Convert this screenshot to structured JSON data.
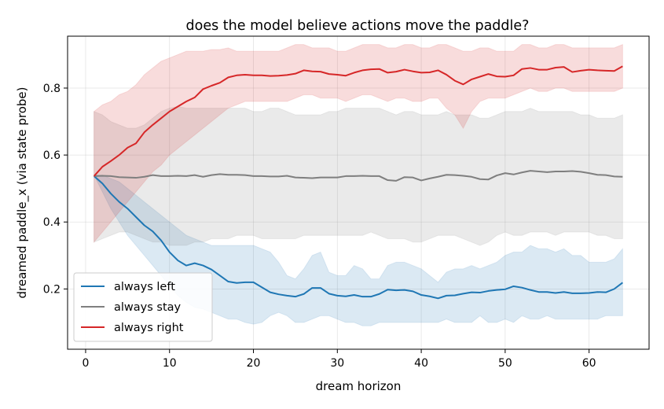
{
  "chart_data": {
    "type": "line",
    "title": "does the model believe actions move the paddle?",
    "xlabel": "dream horizon",
    "ylabel": "dreamed paddle_x (via state probe)",
    "xlim": [
      -2.15,
      67.15
    ],
    "ylim": [
      0.02,
      0.955
    ],
    "xticks": [
      0,
      10,
      20,
      30,
      40,
      50,
      60
    ],
    "yticks": [
      0.2,
      0.4,
      0.6,
      0.8
    ],
    "ytick_labels": [
      "0.2",
      "0.4",
      "0.6",
      "0.8"
    ],
    "grid": true,
    "legend_position": "lower-left",
    "x": [
      1,
      2,
      3,
      4,
      5,
      6,
      7,
      8,
      9,
      10,
      11,
      12,
      13,
      14,
      15,
      16,
      17,
      18,
      19,
      20,
      21,
      22,
      23,
      24,
      25,
      26,
      27,
      28,
      29,
      30,
      31,
      32,
      33,
      34,
      35,
      36,
      37,
      38,
      39,
      40,
      41,
      42,
      43,
      44,
      45,
      46,
      47,
      48,
      49,
      50,
      51,
      52,
      53,
      54,
      55,
      56,
      57,
      58,
      59,
      60,
      61,
      62,
      63,
      64
    ],
    "series": [
      {
        "name": "always left",
        "color": "#1f77b4",
        "values": [
          0.537,
          0.515,
          0.485,
          0.46,
          0.44,
          0.415,
          0.39,
          0.372,
          0.345,
          0.31,
          0.285,
          0.27,
          0.277,
          0.27,
          0.258,
          0.24,
          0.222,
          0.218,
          0.22,
          0.22,
          0.205,
          0.19,
          0.184,
          0.18,
          0.177,
          0.185,
          0.203,
          0.203,
          0.186,
          0.18,
          0.178,
          0.182,
          0.177,
          0.177,
          0.185,
          0.198,
          0.196,
          0.197,
          0.193,
          0.182,
          0.178,
          0.172,
          0.18,
          0.181,
          0.186,
          0.19,
          0.189,
          0.194,
          0.197,
          0.199,
          0.208,
          0.204,
          0.197,
          0.191,
          0.191,
          0.188,
          0.191,
          0.187,
          0.187,
          0.188,
          0.191,
          0.19,
          0.2,
          0.219
        ],
        "lower": [
          0.54,
          0.49,
          0.44,
          0.4,
          0.36,
          0.33,
          0.3,
          0.27,
          0.24,
          0.21,
          0.18,
          0.16,
          0.145,
          0.14,
          0.13,
          0.12,
          0.11,
          0.11,
          0.1,
          0.095,
          0.1,
          0.12,
          0.13,
          0.12,
          0.1,
          0.1,
          0.11,
          0.12,
          0.12,
          0.11,
          0.1,
          0.1,
          0.09,
          0.09,
          0.1,
          0.1,
          0.1,
          0.1,
          0.1,
          0.1,
          0.1,
          0.1,
          0.11,
          0.1,
          0.1,
          0.1,
          0.12,
          0.1,
          0.1,
          0.11,
          0.1,
          0.12,
          0.11,
          0.11,
          0.12,
          0.11,
          0.11,
          0.11,
          0.11,
          0.11,
          0.11,
          0.12,
          0.12,
          0.12
        ],
        "upper": [
          0.54,
          0.54,
          0.53,
          0.52,
          0.5,
          0.48,
          0.46,
          0.44,
          0.42,
          0.4,
          0.38,
          0.36,
          0.35,
          0.34,
          0.33,
          0.33,
          0.33,
          0.33,
          0.33,
          0.33,
          0.32,
          0.31,
          0.28,
          0.24,
          0.23,
          0.26,
          0.3,
          0.31,
          0.25,
          0.24,
          0.24,
          0.27,
          0.26,
          0.23,
          0.23,
          0.27,
          0.28,
          0.28,
          0.27,
          0.26,
          0.24,
          0.22,
          0.25,
          0.26,
          0.26,
          0.27,
          0.26,
          0.27,
          0.28,
          0.3,
          0.31,
          0.31,
          0.33,
          0.32,
          0.32,
          0.31,
          0.32,
          0.3,
          0.3,
          0.28,
          0.28,
          0.28,
          0.29,
          0.32
        ]
      },
      {
        "name": "always stay",
        "color": "#7f7f7f",
        "values": [
          0.537,
          0.538,
          0.537,
          0.534,
          0.533,
          0.532,
          0.535,
          0.54,
          0.537,
          0.537,
          0.538,
          0.537,
          0.54,
          0.535,
          0.54,
          0.543,
          0.541,
          0.541,
          0.54,
          0.537,
          0.537,
          0.536,
          0.536,
          0.538,
          0.533,
          0.532,
          0.531,
          0.533,
          0.533,
          0.533,
          0.537,
          0.537,
          0.538,
          0.537,
          0.537,
          0.525,
          0.523,
          0.534,
          0.533,
          0.524,
          0.53,
          0.535,
          0.541,
          0.54,
          0.538,
          0.535,
          0.528,
          0.527,
          0.539,
          0.546,
          0.542,
          0.548,
          0.553,
          0.551,
          0.549,
          0.551,
          0.551,
          0.552,
          0.55,
          0.546,
          0.541,
          0.54,
          0.536,
          0.535
        ],
        "lower": [
          0.34,
          0.35,
          0.36,
          0.37,
          0.37,
          0.36,
          0.35,
          0.34,
          0.34,
          0.33,
          0.33,
          0.33,
          0.34,
          0.34,
          0.35,
          0.35,
          0.35,
          0.36,
          0.36,
          0.36,
          0.35,
          0.35,
          0.35,
          0.35,
          0.35,
          0.36,
          0.36,
          0.36,
          0.36,
          0.36,
          0.36,
          0.36,
          0.36,
          0.37,
          0.36,
          0.35,
          0.35,
          0.35,
          0.34,
          0.34,
          0.35,
          0.36,
          0.36,
          0.36,
          0.35,
          0.34,
          0.33,
          0.34,
          0.36,
          0.37,
          0.36,
          0.36,
          0.37,
          0.37,
          0.37,
          0.36,
          0.37,
          0.37,
          0.37,
          0.37,
          0.36,
          0.36,
          0.35,
          0.35
        ],
        "upper": [
          0.73,
          0.72,
          0.7,
          0.69,
          0.68,
          0.68,
          0.69,
          0.71,
          0.73,
          0.74,
          0.745,
          0.74,
          0.74,
          0.74,
          0.74,
          0.74,
          0.74,
          0.74,
          0.74,
          0.73,
          0.73,
          0.74,
          0.74,
          0.73,
          0.72,
          0.72,
          0.72,
          0.72,
          0.73,
          0.73,
          0.74,
          0.74,
          0.74,
          0.74,
          0.74,
          0.73,
          0.72,
          0.73,
          0.73,
          0.72,
          0.72,
          0.72,
          0.73,
          0.72,
          0.72,
          0.72,
          0.71,
          0.71,
          0.72,
          0.73,
          0.73,
          0.73,
          0.74,
          0.73,
          0.73,
          0.73,
          0.73,
          0.73,
          0.72,
          0.72,
          0.71,
          0.71,
          0.71,
          0.72
        ]
      },
      {
        "name": "always right",
        "color": "#d62728",
        "values": [
          0.537,
          0.565,
          0.582,
          0.6,
          0.622,
          0.635,
          0.668,
          0.69,
          0.71,
          0.73,
          0.745,
          0.76,
          0.772,
          0.797,
          0.807,
          0.816,
          0.832,
          0.838,
          0.84,
          0.838,
          0.838,
          0.836,
          0.837,
          0.839,
          0.843,
          0.853,
          0.85,
          0.849,
          0.842,
          0.84,
          0.837,
          0.846,
          0.853,
          0.856,
          0.857,
          0.846,
          0.849,
          0.855,
          0.85,
          0.846,
          0.847,
          0.853,
          0.84,
          0.822,
          0.811,
          0.826,
          0.834,
          0.842,
          0.835,
          0.834,
          0.838,
          0.857,
          0.86,
          0.855,
          0.855,
          0.861,
          0.863,
          0.848,
          0.852,
          0.855,
          0.853,
          0.852,
          0.851,
          0.865
        ],
        "lower": [
          0.34,
          0.37,
          0.4,
          0.43,
          0.46,
          0.49,
          0.52,
          0.55,
          0.57,
          0.6,
          0.62,
          0.64,
          0.66,
          0.68,
          0.7,
          0.72,
          0.74,
          0.75,
          0.76,
          0.76,
          0.76,
          0.76,
          0.76,
          0.76,
          0.77,
          0.78,
          0.78,
          0.77,
          0.77,
          0.77,
          0.76,
          0.77,
          0.78,
          0.78,
          0.77,
          0.76,
          0.77,
          0.77,
          0.76,
          0.76,
          0.77,
          0.77,
          0.74,
          0.72,
          0.68,
          0.73,
          0.76,
          0.77,
          0.77,
          0.77,
          0.78,
          0.79,
          0.8,
          0.79,
          0.79,
          0.8,
          0.8,
          0.79,
          0.79,
          0.79,
          0.79,
          0.79,
          0.79,
          0.8
        ],
        "upper": [
          0.73,
          0.75,
          0.76,
          0.78,
          0.79,
          0.81,
          0.84,
          0.86,
          0.88,
          0.89,
          0.9,
          0.91,
          0.91,
          0.91,
          0.915,
          0.915,
          0.92,
          0.91,
          0.91,
          0.91,
          0.91,
          0.91,
          0.91,
          0.92,
          0.93,
          0.93,
          0.92,
          0.92,
          0.92,
          0.91,
          0.91,
          0.92,
          0.93,
          0.93,
          0.93,
          0.92,
          0.92,
          0.93,
          0.93,
          0.92,
          0.92,
          0.93,
          0.93,
          0.92,
          0.91,
          0.91,
          0.92,
          0.92,
          0.91,
          0.91,
          0.91,
          0.93,
          0.93,
          0.92,
          0.92,
          0.93,
          0.93,
          0.92,
          0.92,
          0.92,
          0.92,
          0.92,
          0.92,
          0.93
        ]
      }
    ]
  }
}
